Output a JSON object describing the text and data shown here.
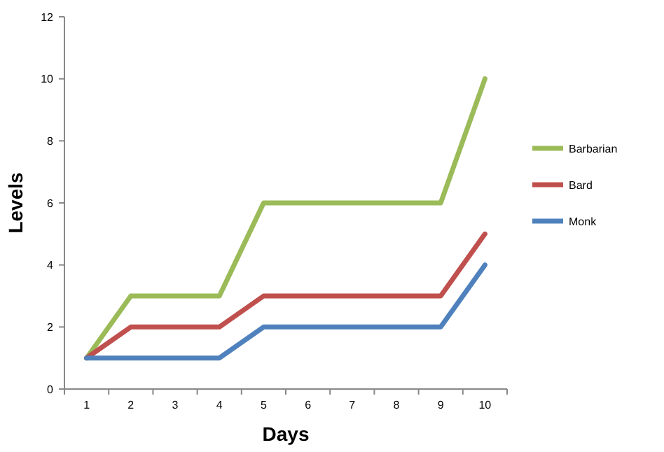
{
  "chart_data": {
    "type": "line",
    "xlabel": "Days",
    "ylabel": "Levels",
    "categories": [
      "1",
      "2",
      "3",
      "4",
      "5",
      "6",
      "7",
      "8",
      "9",
      "10"
    ],
    "series": [
      {
        "name": "Barbarian",
        "color": "#9bbb59",
        "values": [
          1,
          3,
          3,
          3,
          6,
          6,
          6,
          6,
          6,
          10
        ]
      },
      {
        "name": "Bard",
        "color": "#c0504d",
        "values": [
          1,
          2,
          2,
          2,
          3,
          3,
          3,
          3,
          3,
          5
        ]
      },
      {
        "name": "Monk",
        "color": "#4f81bd",
        "values": [
          1,
          1,
          1,
          1,
          2,
          2,
          2,
          2,
          2,
          4
        ]
      }
    ],
    "ylim": [
      0,
      12
    ],
    "yticks": [
      0,
      2,
      4,
      6,
      8,
      10,
      12
    ],
    "grid": false,
    "legend": "right",
    "marker": "none",
    "line_style": "solid"
  }
}
